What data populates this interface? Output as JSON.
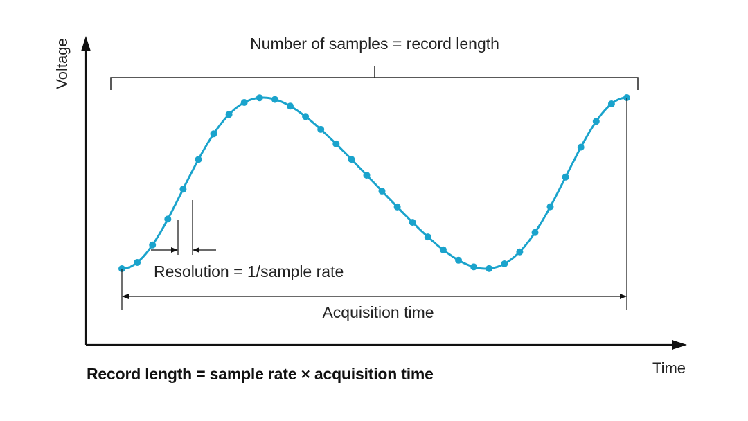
{
  "diagram": {
    "y_axis_label": "Voltage",
    "x_axis_label": "Time",
    "record_length_label": "Number of samples = record length",
    "resolution_label": "Resolution = 1/sample rate",
    "acquisition_label": "Acquisition time",
    "formula_caption": "Record length = sample rate × acquisition time",
    "sample_count": 34,
    "wave_color": "#1aa3cc"
  }
}
